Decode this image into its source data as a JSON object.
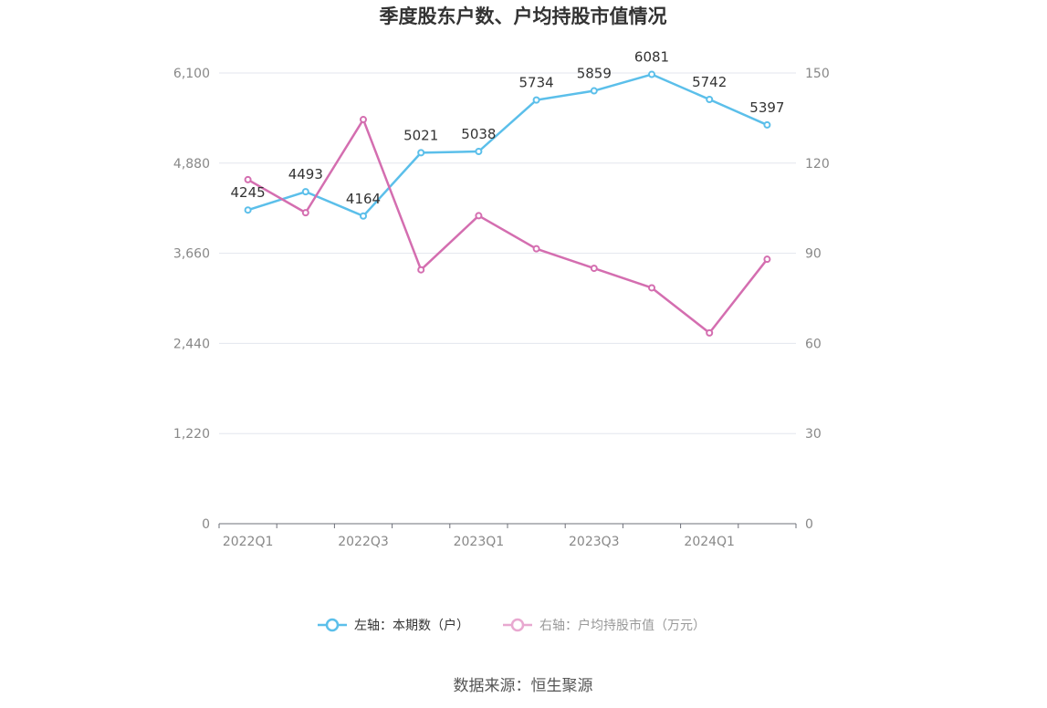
{
  "chart_data": {
    "type": "line",
    "title": "季度股东户数、户均持股市值情况",
    "categories": [
      "2022Q1",
      "2022Q2",
      "2022Q3",
      "2022Q4",
      "2023Q1",
      "2023Q2",
      "2023Q3",
      "2023Q4",
      "2024Q1",
      "2024Q2"
    ],
    "x_tick_labels": [
      "2022Q1",
      "2022Q3",
      "2023Q1",
      "2023Q3",
      "2024Q1"
    ],
    "y_left": {
      "ylim": [
        0,
        6100
      ],
      "ticks": [
        "0",
        "1,220",
        "2,440",
        "3,660",
        "4,880",
        "6,100"
      ],
      "tick_values": [
        0,
        1220,
        2440,
        3660,
        4880,
        6100
      ]
    },
    "y_right": {
      "ylim": [
        0,
        150
      ],
      "ticks": [
        "0",
        "30",
        "60",
        "90",
        "120",
        "150"
      ],
      "tick_values": [
        0,
        30,
        60,
        90,
        120,
        150
      ]
    },
    "grid": true,
    "legend_position": "bottom",
    "series": [
      {
        "name": "左轴：本期数（户）",
        "axis": "left",
        "color": "#5bbfea",
        "values": [
          4245,
          4493,
          4164,
          5021,
          5038,
          5734,
          5859,
          6081,
          5742,
          5397
        ],
        "labels": [
          "4245",
          "4493",
          "4164",
          "5021",
          "5038",
          "5734",
          "5859",
          "6081",
          "5742",
          "5397"
        ]
      },
      {
        "name": "右轴：户均持股市值（万元）",
        "axis": "right",
        "color": "#d46eb0",
        "values": [
          114.5,
          103.5,
          134.5,
          84.5,
          102.5,
          91.5,
          85,
          78.5,
          63.5,
          88
        ]
      }
    ]
  },
  "source": "数据来源：恒生聚源"
}
